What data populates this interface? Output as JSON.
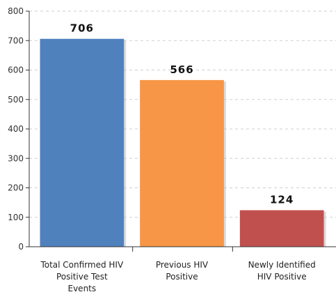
{
  "chart_data": {
    "type": "bar",
    "categories": [
      [
        "Total Confirmed HIV",
        "Positive Test",
        "Events"
      ],
      [
        "Previous HIV",
        "Positive"
      ],
      [
        "Newly Identified",
        "HIV Positive"
      ]
    ],
    "values": [
      706,
      566,
      124
    ],
    "data_labels": [
      "706",
      "566",
      "124"
    ],
    "colors": [
      "#4f81bd",
      "#f79646",
      "#c0504d"
    ],
    "ylim": [
      0,
      800
    ],
    "yticks": [
      0,
      100,
      200,
      300,
      400,
      500,
      600,
      700,
      800
    ],
    "ytick_labels": [
      "0",
      "100",
      "200",
      "300",
      "400",
      "500",
      "600",
      "700",
      "800"
    ],
    "grid": true,
    "title": "",
    "xlabel": "",
    "ylabel": ""
  }
}
